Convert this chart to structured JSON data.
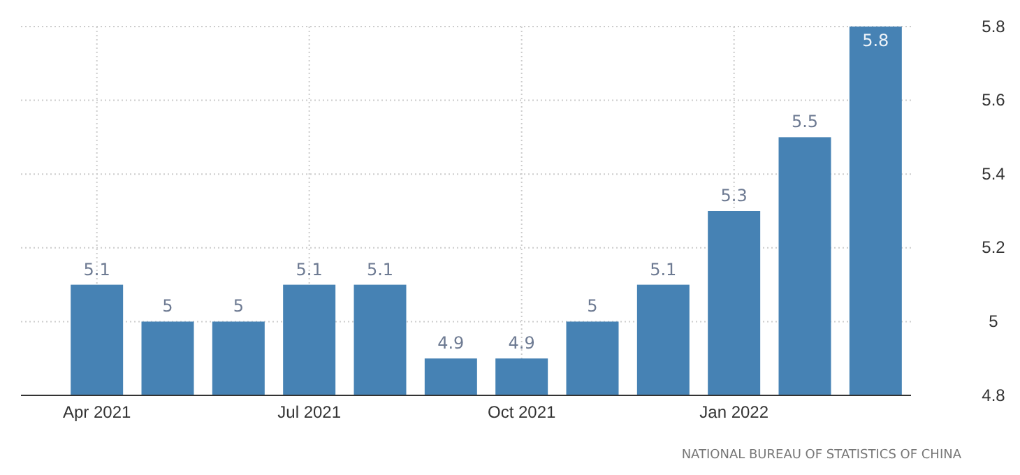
{
  "chart_data": {
    "type": "bar",
    "categories": [
      "Apr 2021",
      null,
      null,
      "Jul 2021",
      null,
      null,
      "Oct 2021",
      null,
      null,
      "Jan 2022",
      null,
      null
    ],
    "values": [
      5.1,
      5,
      5,
      5.1,
      5.1,
      4.9,
      4.9,
      5,
      5.1,
      5.3,
      5.5,
      5.8
    ],
    "color": "#4682b4",
    "ylim": [
      4.8,
      5.8
    ],
    "yticks": [
      4.8,
      5,
      5.2,
      5.4,
      5.6,
      5.8
    ],
    "grid": true,
    "data_labels": true,
    "annotations": [
      "NATIONAL BUREAU OF STATISTICS OF CHINA"
    ]
  }
}
